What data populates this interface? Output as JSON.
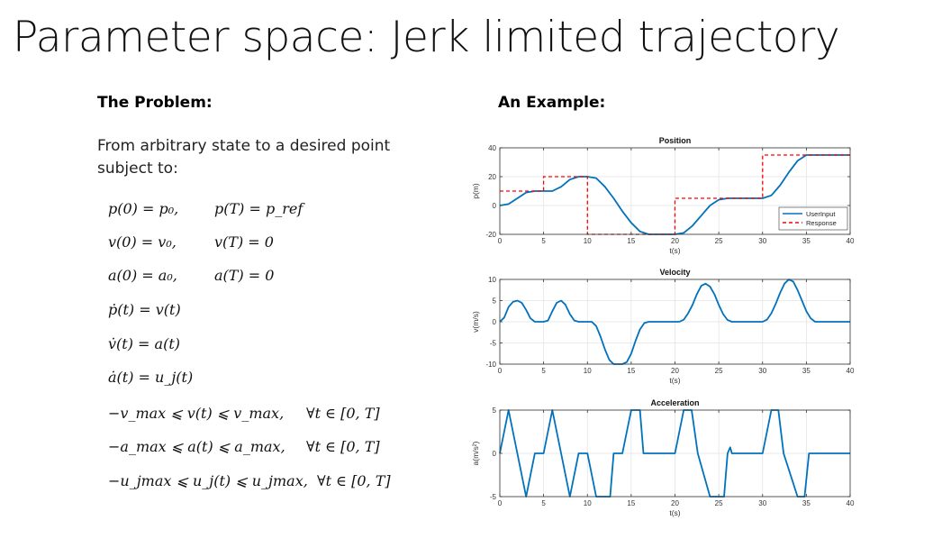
{
  "slide": {
    "title": "Parameter space: Jerk limited trajectory",
    "left_heading": "The Problem:",
    "right_heading": "An Example:",
    "intro": "From arbitrary state to a desired point subject to:"
  },
  "equations": [
    {
      "a": "p(0) = p₀,",
      "b": "p(T) = p_ref",
      "c": ""
    },
    {
      "a": "v(0) = v₀,",
      "b": "v(T) = 0",
      "c": ""
    },
    {
      "a": "a(0) = a₀,",
      "b": "a(T) = 0",
      "c": ""
    },
    {
      "a": "ṗ(t) = v(t)",
      "b": "",
      "c": ""
    },
    {
      "a": "v̇(t) = a(t)",
      "b": "",
      "c": ""
    },
    {
      "a": "ȧ(t) = u_j(t)",
      "b": "",
      "c": ""
    },
    {
      "a": "−v_max ⩽ v(t) ⩽ v_max,",
      "b": "",
      "c": "∀t ∈ [0, T]"
    },
    {
      "a": "−a_max ⩽ a(t) ⩽ a_max,",
      "b": "",
      "c": "∀t ∈ [0, T]"
    },
    {
      "a": "−u_jmax ⩽ u_j(t) ⩽ u_jmax,",
      "b": "",
      "c": "∀t ∈ [0, T]"
    }
  ],
  "chart_data": [
    {
      "type": "line",
      "title": "Position",
      "xlabel": "t(s)",
      "ylabel": "p(m)",
      "xlim": [
        0,
        40
      ],
      "ylim": [
        -20,
        40
      ],
      "xticks": [
        0,
        5,
        10,
        15,
        20,
        25,
        30,
        35,
        40
      ],
      "yticks": [
        -20,
        0,
        20,
        40
      ],
      "grid": true,
      "legend": "bottom-right",
      "series": [
        {
          "name": "UserInput",
          "color": "#0072BD",
          "style": "solid",
          "x": [
            0,
            1,
            2,
            3,
            4,
            5,
            6,
            7,
            8,
            9,
            10,
            11,
            12,
            13,
            14,
            15,
            16,
            17,
            18,
            19,
            20,
            21,
            22,
            23,
            24,
            25,
            26,
            27,
            28,
            29,
            30,
            31,
            32,
            33,
            34,
            35,
            36,
            37,
            38,
            39,
            40
          ],
          "y": [
            0,
            1,
            5,
            9,
            10,
            10,
            10,
            13,
            18,
            20,
            20,
            19,
            13,
            5,
            -4,
            -12,
            -18,
            -20,
            -20,
            -20,
            -20,
            -19,
            -14,
            -7,
            0,
            4,
            5,
            5,
            5,
            5,
            5,
            7,
            14,
            23,
            31,
            35,
            35,
            35,
            35,
            35,
            35
          ]
        },
        {
          "name": "Response",
          "color": "#FF0000",
          "style": "dashed",
          "x": [
            0,
            5,
            5,
            10,
            10,
            20,
            20,
            30,
            30,
            40
          ],
          "y": [
            10,
            10,
            20,
            20,
            -20,
            -20,
            5,
            5,
            35,
            35
          ]
        }
      ]
    },
    {
      "type": "line",
      "title": "Velocity",
      "xlabel": "t(s)",
      "ylabel": "v(m/s)",
      "xlim": [
        0,
        40
      ],
      "ylim": [
        -10,
        10
      ],
      "xticks": [
        0,
        5,
        10,
        15,
        20,
        25,
        30,
        35,
        40
      ],
      "yticks": [
        -10,
        -5,
        0,
        5,
        10
      ],
      "grid": true,
      "series": [
        {
          "color": "#0072BD",
          "style": "solid",
          "x": [
            0,
            0.5,
            1,
            1.5,
            2,
            2.5,
            3,
            3.5,
            4,
            4.5,
            5,
            5.5,
            6,
            6.5,
            7,
            7.5,
            8,
            8.5,
            9,
            9.5,
            10,
            10.5,
            11,
            11.5,
            12,
            12.5,
            13,
            13.5,
            14,
            14.5,
            15,
            15.5,
            16,
            16.5,
            17,
            17.5,
            18,
            18.5,
            19,
            19.5,
            20,
            20.5,
            21,
            21.5,
            22,
            22.5,
            23,
            23.5,
            24,
            24.5,
            25,
            25.5,
            26,
            26.5,
            27,
            27.5,
            28,
            28.5,
            29,
            29.5,
            30,
            30.5,
            31,
            31.5,
            32,
            32.5,
            33,
            33.5,
            34,
            34.5,
            35,
            35.5,
            36,
            37,
            38,
            39,
            40
          ],
          "y": [
            0,
            1,
            3.5,
            4.7,
            5,
            4.5,
            2.8,
            0.8,
            0,
            0,
            0,
            0.3,
            2.5,
            4.5,
            5,
            4,
            1.8,
            0.3,
            0,
            0,
            0,
            0,
            -1,
            -3.5,
            -6.5,
            -9,
            -10,
            -10,
            -10,
            -9.5,
            -7.5,
            -4.5,
            -1.8,
            -0.3,
            0,
            0,
            0,
            0,
            0,
            0,
            0,
            0,
            0.5,
            2,
            4,
            6.5,
            8.5,
            9,
            8.3,
            6.5,
            4,
            1.8,
            0.4,
            0,
            0,
            0,
            0,
            0,
            0,
            0,
            0,
            0.5,
            2,
            4.2,
            6.8,
            9,
            10,
            9.5,
            7.5,
            5,
            2.5,
            0.8,
            0,
            0,
            0,
            0,
            0
          ]
        }
      ]
    },
    {
      "type": "line",
      "title": "Acceleration",
      "xlabel": "t(s)",
      "ylabel": "a(m/s²)",
      "xlim": [
        0,
        40
      ],
      "ylim": [
        -5,
        5
      ],
      "xticks": [
        0,
        5,
        10,
        15,
        20,
        25,
        30,
        35,
        40
      ],
      "yticks": [
        -5,
        0,
        5
      ],
      "grid": true,
      "series": [
        {
          "color": "#0072BD",
          "style": "solid",
          "x": [
            0,
            1,
            3,
            4,
            5,
            6,
            8,
            9,
            10,
            11,
            11.9,
            12.6,
            13,
            14,
            15,
            15.3,
            16,
            16.4,
            18,
            19,
            20,
            21,
            21.9,
            22.6,
            24,
            25,
            25.6,
            26,
            26.3,
            26.5,
            26.6,
            27,
            28,
            29,
            30,
            31,
            31.8,
            32.4,
            34,
            34.8,
            35.3,
            36,
            37,
            38,
            39,
            40
          ],
          "y": [
            0,
            5,
            -5,
            0,
            0,
            5,
            -5,
            0,
            0,
            -5,
            -5,
            -5,
            0,
            0,
            5,
            5,
            5,
            0,
            0,
            0,
            0,
            5,
            5,
            0,
            -5,
            -5,
            -5,
            0,
            0.7,
            0,
            0,
            0,
            0,
            0,
            0,
            5,
            5,
            0,
            -5,
            -5,
            0,
            0,
            0,
            0,
            0,
            0
          ]
        }
      ]
    }
  ]
}
